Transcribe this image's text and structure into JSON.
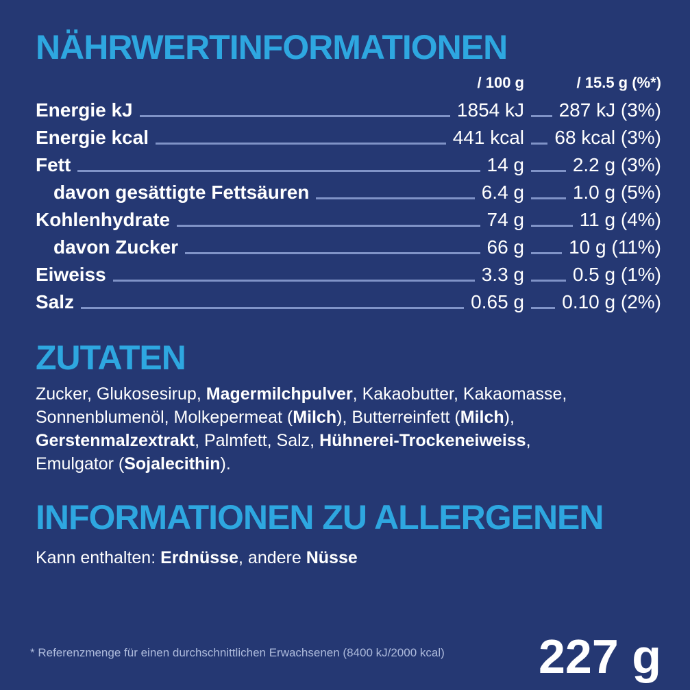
{
  "colors": {
    "background": "#253873",
    "accent": "#2ea7e0",
    "text": "#ffffff",
    "leader": "#8093c7",
    "footnote": "#aebbdc"
  },
  "nutrition": {
    "title": "NÄHRWERTINFORMATIONEN",
    "col_headers": {
      "per_100g": "/ 100 g",
      "per_portion": "/ 15.5 g (%*)"
    },
    "rows": [
      {
        "label": "Energie kJ",
        "indent": false,
        "per100": "1854 kJ",
        "portion": "287 kJ (3%)"
      },
      {
        "label": "Energie kcal",
        "indent": false,
        "per100": "441 kcal",
        "portion": "68 kcal (3%)"
      },
      {
        "label": "Fett",
        "indent": false,
        "per100": "14 g",
        "portion": "2.2 g (3%)"
      },
      {
        "label": "davon gesättigte Fettsäuren",
        "indent": true,
        "per100": "6.4 g",
        "portion": "1.0 g (5%)"
      },
      {
        "label": "Kohlenhydrate",
        "indent": false,
        "per100": "74 g",
        "portion": "11 g (4%)"
      },
      {
        "label": "davon Zucker",
        "indent": true,
        "per100": "66 g",
        "portion": "10 g (11%)"
      },
      {
        "label": "Eiweiss",
        "indent": false,
        "per100": "3.3 g",
        "portion": "0.5 g (1%)"
      },
      {
        "label": "Salz",
        "indent": false,
        "per100": "0.65 g",
        "portion": "0.10 g (2%)"
      }
    ]
  },
  "ingredients": {
    "title": "ZUTATEN",
    "segments": [
      {
        "text": "Zucker, Glukosesirup, ",
        "bold": false
      },
      {
        "text": "Magermilchpulver",
        "bold": true
      },
      {
        "text": ", Kakaobutter, Kakaomasse, Sonnenblumenöl, Molkepermeat (",
        "bold": false
      },
      {
        "text": "Milch",
        "bold": true
      },
      {
        "text": "), Butterreinfett (",
        "bold": false
      },
      {
        "text": "Milch",
        "bold": true
      },
      {
        "text": "), ",
        "bold": false
      },
      {
        "text": "Gerstenmalzextrakt",
        "bold": true
      },
      {
        "text": ", Palmfett, Salz, ",
        "bold": false
      },
      {
        "text": "Hühnerei-Trockeneiweiss",
        "bold": true
      },
      {
        "text": ", Emulgator (",
        "bold": false
      },
      {
        "text": "Sojalecithin",
        "bold": true
      },
      {
        "text": ").",
        "bold": false
      }
    ]
  },
  "allergens": {
    "title": "INFORMATIONEN ZU ALLERGENEN",
    "segments": [
      {
        "text": "Kann enthalten: ",
        "bold": false
      },
      {
        "text": "Erdnüsse",
        "bold": true
      },
      {
        "text": ", andere ",
        "bold": false
      },
      {
        "text": "Nüsse",
        "bold": true
      }
    ]
  },
  "footer": {
    "footnote": "* Referenzmenge für einen durchschnittlichen Erwachsenen (8400 kJ/2000 kcal)",
    "net_weight": "227 g"
  }
}
